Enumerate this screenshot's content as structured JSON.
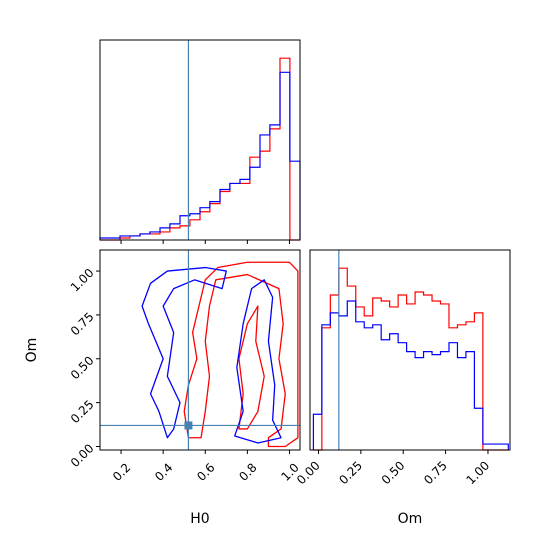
{
  "chart_data": {
    "type": "corner",
    "parameters": [
      "H0",
      "Om"
    ],
    "truth": {
      "H0": 0.52,
      "Om": 0.12
    },
    "colors": {
      "series_a": "#ff0000",
      "series_b": "#0000ff",
      "truth": "#4682b4"
    },
    "panels": [
      {
        "id": "hist_H0",
        "type": "histogram",
        "xlim": [
          0.1,
          1.05
        ],
        "bin_edges": [
          0.1,
          0.147,
          0.195,
          0.242,
          0.29,
          0.337,
          0.385,
          0.432,
          0.48,
          0.527,
          0.575,
          0.622,
          0.67,
          0.717,
          0.765,
          0.812,
          0.86,
          0.907,
          0.955,
          1.002,
          1.05
        ],
        "series": [
          {
            "color_key": "series_a",
            "counts": [
              0,
              0,
              1,
              2,
              3,
              3,
              4,
              6,
              7,
              10,
              14,
              18,
              24,
              28,
              28,
              41,
              44,
              55,
              90,
              0
            ]
          },
          {
            "color_key": "series_b",
            "counts": [
              1,
              1,
              2,
              2,
              3,
              4,
              6,
              8,
              12,
              13,
              16,
              19,
              25,
              28,
              30,
              36,
              52,
              57,
              83,
              39
            ]
          }
        ],
        "xticks": [],
        "yticks": []
      },
      {
        "id": "hist_Om",
        "type": "histogram",
        "xlim": [
          -0.05,
          1.13
        ],
        "bin_edges": [
          -0.03,
          0.02,
          0.07,
          0.12,
          0.17,
          0.22,
          0.27,
          0.32,
          0.37,
          0.42,
          0.47,
          0.52,
          0.57,
          0.62,
          0.67,
          0.72,
          0.77,
          0.82,
          0.87,
          0.92,
          0.97,
          1.02,
          1.07,
          1.12
        ],
        "series": [
          {
            "color_key": "series_a",
            "counts": [
              0,
              41,
              52,
              61,
              55,
              48,
              45,
              51,
              50,
              48,
              52,
              49,
              53,
              52,
              50,
              49,
              41,
              42,
              43,
              46,
              0,
              0,
              0
            ]
          },
          {
            "color_key": "series_b",
            "counts": [
              12,
              42,
              46,
              45,
              50,
              43,
              41,
              42,
              37,
              39,
              36,
              33,
              31,
              33,
              32,
              33,
              36,
              31,
              33,
              14,
              2,
              2,
              2
            ]
          }
        ],
        "xticks": [
          0.0,
          0.25,
          0.5,
          0.75,
          1.0
        ],
        "xtick_labels": [
          "0.00",
          "0.25",
          "0.50",
          "0.75",
          "1.00"
        ],
        "xlabel": "Om"
      },
      {
        "id": "joint_H0_Om",
        "type": "contour",
        "xlim": [
          0.1,
          1.05
        ],
        "ylim": [
          -0.02,
          1.12
        ],
        "xticks": [
          0.2,
          0.4,
          0.6,
          0.8,
          1.0
        ],
        "xtick_labels": [
          "0.2",
          "0.4",
          "0.6",
          "0.8",
          "1.0"
        ],
        "yticks": [
          0.0,
          0.25,
          0.5,
          0.75,
          1.0
        ],
        "ytick_labels": [
          "0.00",
          "0.25",
          "0.50",
          "0.75",
          "1.00"
        ],
        "xlabel": "H0",
        "ylabel": "Om",
        "contours": [
          {
            "color_key": "series_a",
            "points": [
              [
                0.52,
                0.05
              ],
              [
                0.5,
                0.2
              ],
              [
                0.52,
                0.35
              ],
              [
                0.56,
                0.5
              ],
              [
                0.54,
                0.65
              ],
              [
                0.57,
                0.8
              ],
              [
                0.6,
                0.95
              ],
              [
                0.66,
                1.02
              ],
              [
                0.8,
                1.05
              ],
              [
                1.0,
                1.05
              ],
              [
                1.04,
                1.0
              ],
              [
                1.04,
                0.05
              ],
              [
                0.98,
                0.0
              ],
              [
                0.9,
                0.0
              ],
              [
                0.9,
                0.05
              ],
              [
                0.96,
                0.1
              ],
              [
                0.98,
                0.3
              ],
              [
                0.95,
                0.5
              ],
              [
                0.97,
                0.7
              ],
              [
                0.95,
                0.9
              ],
              [
                0.8,
                0.98
              ],
              [
                0.65,
                0.95
              ],
              [
                0.62,
                0.8
              ],
              [
                0.6,
                0.6
              ],
              [
                0.62,
                0.4
              ],
              [
                0.6,
                0.2
              ],
              [
                0.58,
                0.05
              ]
            ]
          },
          {
            "color_key": "series_a",
            "points": [
              [
                0.76,
                0.1
              ],
              [
                0.78,
                0.3
              ],
              [
                0.76,
                0.5
              ],
              [
                0.8,
                0.7
              ],
              [
                0.85,
                0.8
              ],
              [
                0.84,
                0.6
              ],
              [
                0.88,
                0.4
              ],
              [
                0.85,
                0.2
              ],
              [
                0.8,
                0.1
              ]
            ]
          },
          {
            "color_key": "series_b",
            "points": [
              [
                0.42,
                0.05
              ],
              [
                0.38,
                0.2
              ],
              [
                0.34,
                0.3
              ],
              [
                0.4,
                0.5
              ],
              [
                0.33,
                0.7
              ],
              [
                0.3,
                0.8
              ],
              [
                0.34,
                0.93
              ],
              [
                0.42,
                1.0
              ],
              [
                0.6,
                1.02
              ],
              [
                0.7,
                1.0
              ],
              [
                0.68,
                0.9
              ],
              [
                0.55,
                0.95
              ],
              [
                0.45,
                0.9
              ],
              [
                0.4,
                0.8
              ],
              [
                0.45,
                0.65
              ],
              [
                0.42,
                0.4
              ],
              [
                0.48,
                0.25
              ],
              [
                0.45,
                0.1
              ]
            ]
          },
          {
            "color_key": "series_b",
            "points": [
              [
                0.74,
                0.06
              ],
              [
                0.78,
                0.2
              ],
              [
                0.75,
                0.45
              ],
              [
                0.78,
                0.7
              ],
              [
                0.82,
                0.9
              ],
              [
                0.88,
                0.95
              ],
              [
                0.92,
                0.85
              ],
              [
                0.9,
                0.6
              ],
              [
                0.93,
                0.35
              ],
              [
                0.92,
                0.15
              ],
              [
                0.96,
                0.05
              ],
              [
                0.85,
                0.02
              ]
            ]
          }
        ],
        "truth_marker": [
          0.52,
          0.12
        ]
      }
    ]
  }
}
